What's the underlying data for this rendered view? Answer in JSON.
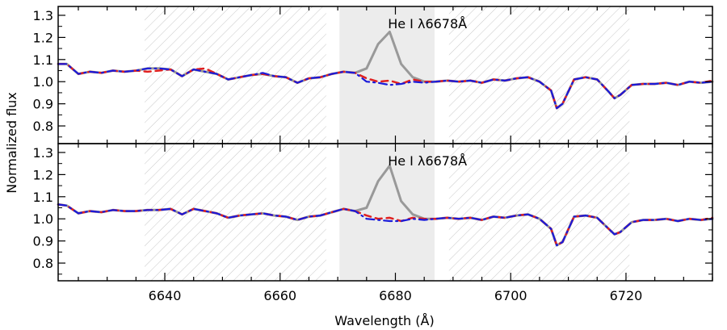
{
  "chart_data": {
    "type": "line",
    "xlabel": "Wavelength (Å)",
    "ylabel": "Normalized flux",
    "xlim": [
      6621.5,
      6735
    ],
    "x_ticks": [
      "6640",
      "6660",
      "6680",
      "6700",
      "6720"
    ],
    "x_tick_values": [
      6640,
      6660,
      6680,
      6700,
      6720
    ],
    "colors": {
      "observed": "#999999",
      "model_a": "#e02020",
      "model_b": "#1a1ad9",
      "band_fill": "#ececec",
      "hatch": "#c8c8c8",
      "axis": "#000000"
    },
    "shaded_region": [
      6670.3,
      6686.8
    ],
    "hatched_regions": [
      [
        6636.5,
        6668.0
      ],
      [
        6689.3,
        6720.6
      ]
    ],
    "panels": [
      {
        "annotation": "He I λ6678Å",
        "ylim": [
          0.72,
          1.34
        ],
        "y_ticks": [
          "0.8",
          "0.9",
          "1.0",
          "1.1",
          "1.2",
          "1.3"
        ],
        "y_tick_values": [
          0.8,
          0.9,
          1.0,
          1.1,
          1.2,
          1.3
        ],
        "x": [
          6621.5,
          6623,
          6625,
          6627,
          6629,
          6631,
          6633,
          6635,
          6637,
          6639,
          6641,
          6643,
          6645,
          6647,
          6649,
          6651,
          6653,
          6655,
          6657,
          6659,
          6661,
          6663,
          6665,
          6667,
          6669,
          6671,
          6673,
          6675,
          6677,
          6679,
          6681,
          6683,
          6685,
          6687,
          6689,
          6691,
          6693,
          6695,
          6697,
          6699,
          6701,
          6703,
          6705,
          6707,
          6708,
          6709,
          6711,
          6713,
          6715,
          6717,
          6718,
          6719,
          6721,
          6723,
          6725,
          6727,
          6729,
          6731,
          6733,
          6735
        ],
        "series": [
          {
            "name": "",
            "values": [
              1.08,
              1.08,
              1.035,
              1.045,
              1.04,
              1.05,
              1.045,
              1.05,
              1.06,
              1.06,
              1.055,
              1.025,
              1.055,
              1.045,
              1.035,
              1.01,
              1.02,
              1.03,
              1.035,
              1.025,
              1.02,
              0.995,
              1.015,
              1.02,
              1.035,
              1.045,
              1.04,
              1.06,
              1.17,
              1.225,
              1.08,
              1.02,
              1.0,
              1.0,
              1.005,
              1.0,
              1.005,
              0.995,
              1.01,
              1.005,
              1.015,
              1.02,
              1.0,
              0.96,
              0.88,
              0.9,
              1.01,
              1.02,
              1.01,
              0.955,
              0.925,
              0.94,
              0.985,
              0.99,
              0.99,
              0.995,
              0.985,
              1.0,
              0.995,
              1.0
            ]
          },
          {
            "name": "",
            "values": [
              1.08,
              1.08,
              1.035,
              1.045,
              1.04,
              1.05,
              1.045,
              1.05,
              1.045,
              1.05,
              1.055,
              1.025,
              1.055,
              1.06,
              1.035,
              1.01,
              1.02,
              1.03,
              1.035,
              1.025,
              1.02,
              0.995,
              1.015,
              1.02,
              1.035,
              1.045,
              1.04,
              1.015,
              1.0,
              1.005,
              0.99,
              1.01,
              1.0,
              1.0,
              1.005,
              1.0,
              1.005,
              0.995,
              1.01,
              1.005,
              1.015,
              1.02,
              1.0,
              0.96,
              0.88,
              0.9,
              1.01,
              1.02,
              1.01,
              0.955,
              0.925,
              0.94,
              0.985,
              0.99,
              0.99,
              0.995,
              0.985,
              1.0,
              0.995,
              1.005
            ]
          },
          {
            "name": "",
            "values": [
              1.08,
              1.08,
              1.035,
              1.045,
              1.04,
              1.05,
              1.045,
              1.05,
              1.06,
              1.06,
              1.055,
              1.025,
              1.055,
              1.045,
              1.035,
              1.01,
              1.02,
              1.03,
              1.04,
              1.025,
              1.02,
              0.995,
              1.015,
              1.02,
              1.035,
              1.045,
              1.04,
              1.0,
              0.995,
              0.985,
              0.99,
              1.0,
              0.995,
              1.0,
              1.005,
              1.0,
              1.005,
              0.995,
              1.01,
              1.005,
              1.015,
              1.02,
              1.0,
              0.96,
              0.88,
              0.9,
              1.01,
              1.02,
              1.01,
              0.955,
              0.925,
              0.94,
              0.985,
              0.99,
              0.99,
              0.995,
              0.985,
              1.0,
              0.995,
              1.0
            ]
          }
        ]
      },
      {
        "annotation": "He I λ6678Å",
        "ylim": [
          0.72,
          1.34
        ],
        "y_ticks": [
          "0.8",
          "0.9",
          "1.0",
          "1.1",
          "1.2",
          "1.3"
        ],
        "y_tick_values": [
          0.8,
          0.9,
          1.0,
          1.1,
          1.2,
          1.3
        ],
        "x": [
          6621.5,
          6623,
          6625,
          6627,
          6629,
          6631,
          6633,
          6635,
          6637,
          6639,
          6641,
          6643,
          6645,
          6647,
          6649,
          6651,
          6653,
          6655,
          6657,
          6659,
          6661,
          6663,
          6665,
          6667,
          6669,
          6671,
          6673,
          6675,
          6677,
          6679,
          6681,
          6683,
          6685,
          6687,
          6689,
          6691,
          6693,
          6695,
          6697,
          6699,
          6701,
          6703,
          6705,
          6707,
          6708,
          6709,
          6711,
          6713,
          6715,
          6717,
          6718,
          6719,
          6721,
          6723,
          6725,
          6727,
          6729,
          6731,
          6733,
          6735
        ],
        "series": [
          {
            "name": "",
            "values": [
              1.065,
              1.06,
              1.025,
              1.035,
              1.03,
              1.04,
              1.035,
              1.035,
              1.04,
              1.04,
              1.045,
              1.02,
              1.045,
              1.035,
              1.025,
              1.005,
              1.015,
              1.02,
              1.025,
              1.015,
              1.01,
              0.995,
              1.01,
              1.015,
              1.03,
              1.045,
              1.035,
              1.05,
              1.17,
              1.24,
              1.08,
              1.02,
              1.0,
              1.0,
              1.005,
              1.0,
              1.005,
              0.995,
              1.01,
              1.005,
              1.015,
              1.02,
              1.0,
              0.955,
              0.88,
              0.895,
              1.01,
              1.015,
              1.005,
              0.955,
              0.93,
              0.94,
              0.985,
              0.995,
              0.995,
              1.0,
              0.99,
              1.0,
              0.995,
              1.0
            ]
          },
          {
            "name": "",
            "values": [
              1.065,
              1.06,
              1.025,
              1.035,
              1.03,
              1.04,
              1.035,
              1.035,
              1.04,
              1.04,
              1.045,
              1.02,
              1.045,
              1.035,
              1.025,
              1.005,
              1.015,
              1.02,
              1.025,
              1.015,
              1.01,
              0.995,
              1.01,
              1.015,
              1.03,
              1.045,
              1.035,
              1.015,
              1.0,
              1.005,
              0.99,
              1.005,
              1.0,
              1.0,
              1.005,
              1.0,
              1.005,
              0.995,
              1.01,
              1.005,
              1.015,
              1.02,
              1.0,
              0.955,
              0.88,
              0.895,
              1.01,
              1.015,
              1.005,
              0.955,
              0.93,
              0.94,
              0.985,
              0.995,
              0.995,
              1.0,
              0.99,
              1.0,
              0.995,
              1.005
            ]
          },
          {
            "name": "",
            "values": [
              1.065,
              1.06,
              1.025,
              1.035,
              1.03,
              1.04,
              1.035,
              1.035,
              1.04,
              1.04,
              1.045,
              1.02,
              1.045,
              1.035,
              1.025,
              1.005,
              1.015,
              1.02,
              1.025,
              1.015,
              1.01,
              0.995,
              1.01,
              1.015,
              1.03,
              1.045,
              1.035,
              1.0,
              0.995,
              0.99,
              0.99,
              1.0,
              0.995,
              1.0,
              1.005,
              1.0,
              1.005,
              0.995,
              1.01,
              1.005,
              1.015,
              1.02,
              1.0,
              0.955,
              0.88,
              0.895,
              1.01,
              1.015,
              1.005,
              0.955,
              0.93,
              0.94,
              0.985,
              0.995,
              0.995,
              1.0,
              0.99,
              1.0,
              0.995,
              1.0
            ]
          }
        ]
      }
    ]
  }
}
